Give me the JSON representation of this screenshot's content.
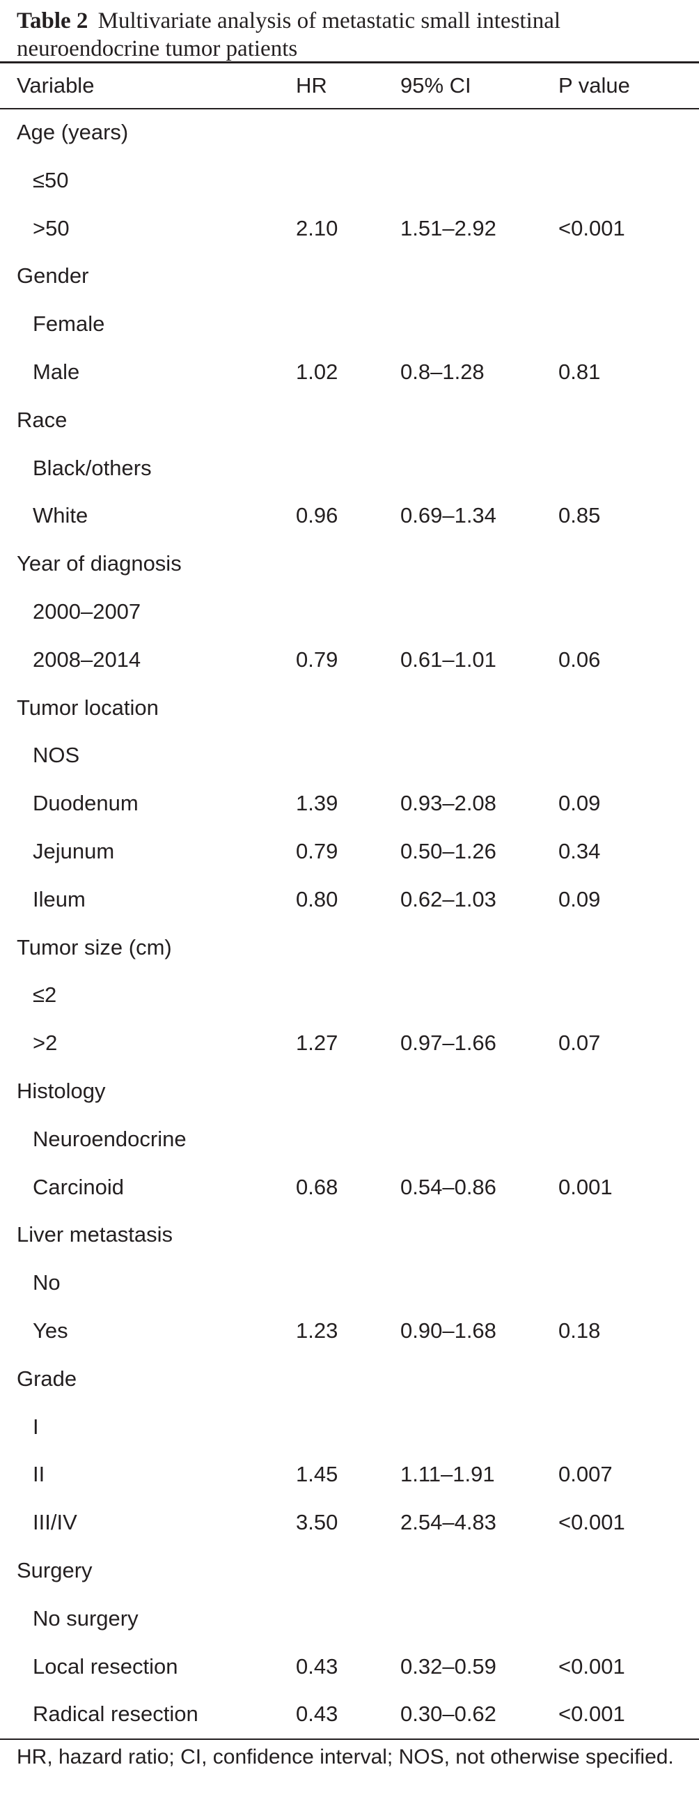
{
  "caption": {
    "label": "Table 2",
    "text": "Multivariate analysis of metastatic small intestinal neuroendocrine tumor patients"
  },
  "headers": [
    "Variable",
    "HR",
    "95% CI",
    "P value"
  ],
  "rows": [
    {
      "variable": "Age (years)",
      "indent": false,
      "hr": "",
      "ci": "",
      "p": ""
    },
    {
      "variable": "≤50",
      "indent": true,
      "hr": "",
      "ci": "",
      "p": ""
    },
    {
      "variable": ">50",
      "indent": true,
      "hr": "2.10",
      "ci": "1.51–2.92",
      "p": "<0.001"
    },
    {
      "variable": "Gender",
      "indent": false,
      "hr": "",
      "ci": "",
      "p": ""
    },
    {
      "variable": "Female",
      "indent": true,
      "hr": "",
      "ci": "",
      "p": ""
    },
    {
      "variable": "Male",
      "indent": true,
      "hr": "1.02",
      "ci": "0.8–1.28",
      "p": "0.81"
    },
    {
      "variable": "Race",
      "indent": false,
      "hr": "",
      "ci": "",
      "p": ""
    },
    {
      "variable": "Black/others",
      "indent": true,
      "hr": "",
      "ci": "",
      "p": ""
    },
    {
      "variable": "White",
      "indent": true,
      "hr": "0.96",
      "ci": "0.69–1.34",
      "p": "0.85"
    },
    {
      "variable": "Year of diagnosis",
      "indent": false,
      "hr": "",
      "ci": "",
      "p": ""
    },
    {
      "variable": "2000–2007",
      "indent": true,
      "hr": "",
      "ci": "",
      "p": ""
    },
    {
      "variable": "2008–2014",
      "indent": true,
      "hr": "0.79",
      "ci": "0.61–1.01",
      "p": "0.06"
    },
    {
      "variable": "Tumor location",
      "indent": false,
      "hr": "",
      "ci": "",
      "p": ""
    },
    {
      "variable": "NOS",
      "indent": true,
      "hr": "",
      "ci": "",
      "p": ""
    },
    {
      "variable": "Duodenum",
      "indent": true,
      "hr": "1.39",
      "ci": "0.93–2.08",
      "p": "0.09"
    },
    {
      "variable": "Jejunum",
      "indent": true,
      "hr": "0.79",
      "ci": "0.50–1.26",
      "p": "0.34"
    },
    {
      "variable": "Ileum",
      "indent": true,
      "hr": "0.80",
      "ci": "0.62–1.03",
      "p": "0.09"
    },
    {
      "variable": "Tumor size (cm)",
      "indent": false,
      "hr": "",
      "ci": "",
      "p": ""
    },
    {
      "variable": "≤2",
      "indent": true,
      "hr": "",
      "ci": "",
      "p": ""
    },
    {
      "variable": ">2",
      "indent": true,
      "hr": "1.27",
      "ci": "0.97–1.66",
      "p": "0.07"
    },
    {
      "variable": "Histology",
      "indent": false,
      "hr": "",
      "ci": "",
      "p": ""
    },
    {
      "variable": "Neuroendocrine",
      "indent": true,
      "hr": "",
      "ci": "",
      "p": ""
    },
    {
      "variable": "Carcinoid",
      "indent": true,
      "hr": "0.68",
      "ci": "0.54–0.86",
      "p": "0.001"
    },
    {
      "variable": "Liver metastasis",
      "indent": false,
      "hr": "",
      "ci": "",
      "p": ""
    },
    {
      "variable": "No",
      "indent": true,
      "hr": "",
      "ci": "",
      "p": ""
    },
    {
      "variable": "Yes",
      "indent": true,
      "hr": "1.23",
      "ci": "0.90–1.68",
      "p": "0.18"
    },
    {
      "variable": "Grade",
      "indent": false,
      "hr": "",
      "ci": "",
      "p": ""
    },
    {
      "variable": "I",
      "indent": true,
      "hr": "",
      "ci": "",
      "p": ""
    },
    {
      "variable": "II",
      "indent": true,
      "hr": "1.45",
      "ci": "1.11–1.91",
      "p": "0.007"
    },
    {
      "variable": "III/IV",
      "indent": true,
      "hr": "3.50",
      "ci": "2.54–4.83",
      "p": "<0.001"
    },
    {
      "variable": "Surgery",
      "indent": false,
      "hr": "",
      "ci": "",
      "p": ""
    },
    {
      "variable": "No surgery",
      "indent": true,
      "hr": "",
      "ci": "",
      "p": ""
    },
    {
      "variable": "Local resection",
      "indent": true,
      "hr": "0.43",
      "ci": "0.32–0.59",
      "p": "<0.001"
    },
    {
      "variable": "Radical resection",
      "indent": true,
      "hr": "0.43",
      "ci": "0.30–0.62",
      "p": "<0.001"
    }
  ],
  "footnote": "HR, hazard ratio; CI, confidence interval; NOS, not otherwise specified."
}
